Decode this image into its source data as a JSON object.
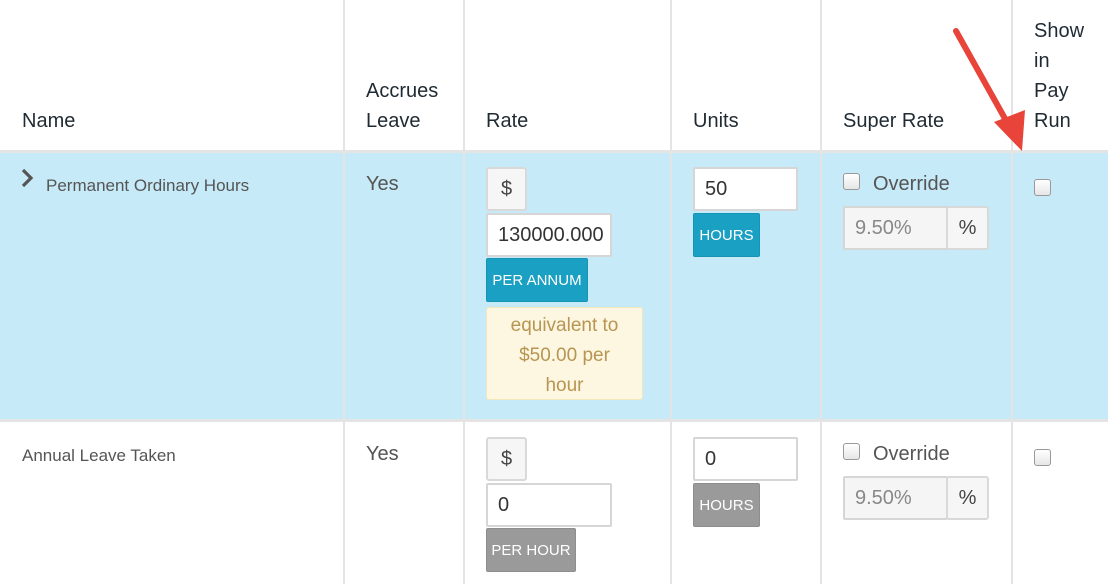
{
  "headers": {
    "name": "Name",
    "accrues_leave": [
      "Accrues",
      "Leave"
    ],
    "rate": "Rate",
    "units": "Units",
    "super_rate": "Super Rate",
    "show_in_pay_run": [
      "Show",
      "in",
      "Pay",
      "Run"
    ]
  },
  "rows": [
    {
      "name": "Permanent Ordinary Hours",
      "accrues_leave": "Yes",
      "currency": "$",
      "rate_value": "130000.000",
      "rate_unit": "PER ANNUM",
      "equivalent": [
        "equivalent to",
        "$50.00 per",
        "hour"
      ],
      "units_value": "50",
      "units_label": "HOURS",
      "override_label": "Override",
      "super_rate_value": "9.50%",
      "super_unit": "%"
    },
    {
      "name": "Annual Leave Taken",
      "accrues_leave": "Yes",
      "currency": "$",
      "rate_value": "0",
      "rate_unit": "PER HOUR",
      "units_value": "0",
      "units_label": "HOURS",
      "override_label": "Override",
      "super_rate_value": "9.50%",
      "super_unit": "%"
    }
  ],
  "colors": {
    "selected_row": "#c6eaf7",
    "active_tag": "#1aa0c3",
    "muted_tag": "#9a9a9a",
    "annotation_arrow": "#e8443a"
  },
  "icons": [
    "chevron-right-icon",
    "red-arrow-annotation"
  ]
}
